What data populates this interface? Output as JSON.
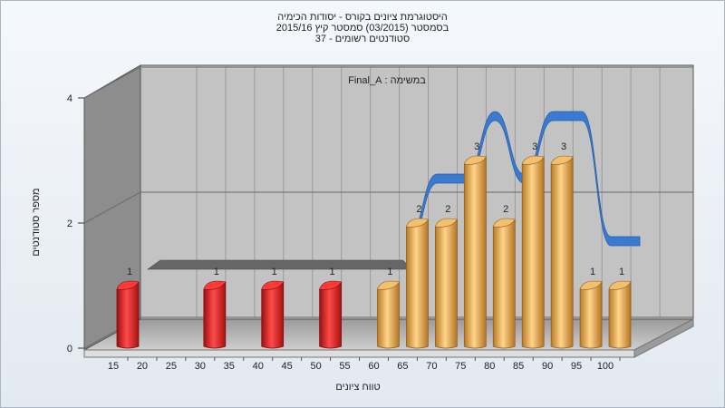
{
  "chart_data": {
    "type": "bar",
    "title_lines": [
      "היסטוגרמת ציונים בקורס - יסודות הכימיה",
      "בסמסטר (03/2015) סמסטר קיץ 2015/16",
      "סטודנטים רשומים - 37"
    ],
    "annotation": "במשימה : Final_A",
    "xlabel": "טווח ציונים",
    "ylabel": "מספר סטודנטים",
    "x_ticks": [
      "15",
      "20",
      "25",
      "30",
      "35",
      "40",
      "45",
      "50",
      "55",
      "60",
      "65",
      "70",
      "75",
      "80",
      "85",
      "90",
      "95",
      "100"
    ],
    "y_ticks": [
      "0",
      "2",
      "4"
    ],
    "ylim": [
      0,
      4
    ],
    "categories": [
      "15",
      "30",
      "40",
      "50",
      "60",
      "65",
      "70",
      "75",
      "80",
      "85",
      "90",
      "95",
      "100"
    ],
    "values": [
      1,
      1,
      1,
      1,
      1,
      2,
      2,
      3,
      2,
      3,
      3,
      1,
      1
    ],
    "bar_group": [
      "fail",
      "fail",
      "fail",
      "fail",
      "pass",
      "pass",
      "pass",
      "pass",
      "pass",
      "pass",
      "pass",
      "pass",
      "pass"
    ],
    "colors": {
      "fail": "#e02020",
      "pass": "#e8a94a",
      "ribbon_fail": "#666666",
      "ribbon_pass": "#3a7ad0",
      "wall": "#bdbdbd",
      "side_wall": "#8a8a8a"
    },
    "grid": true,
    "view": "3d"
  }
}
